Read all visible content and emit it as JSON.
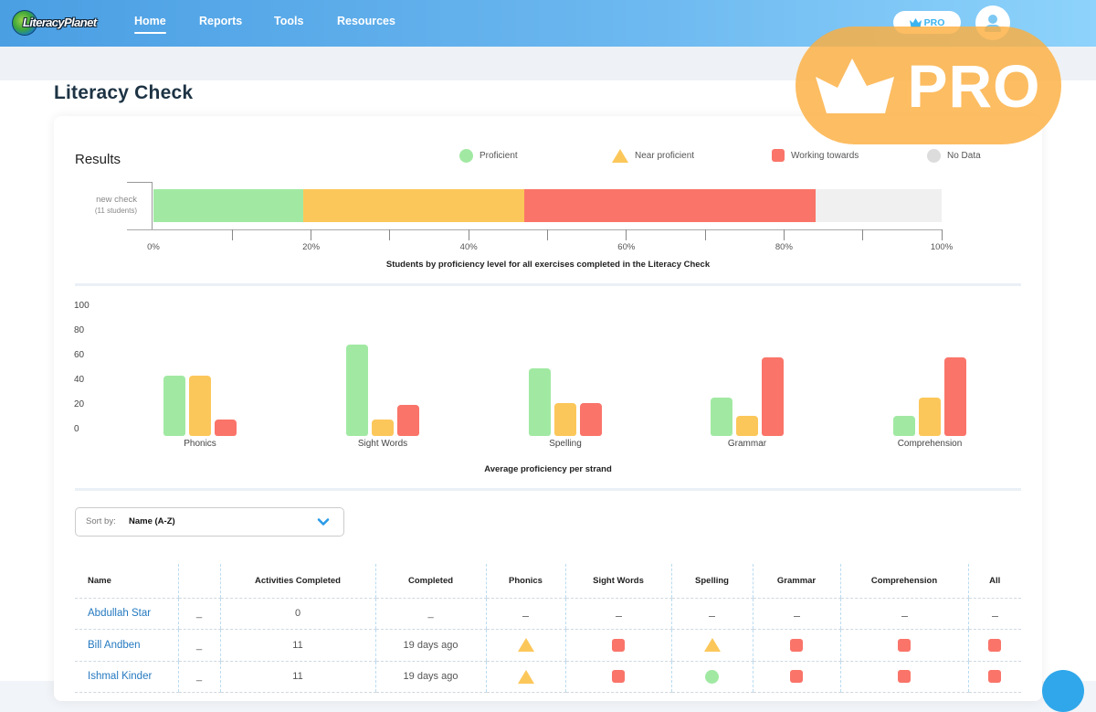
{
  "header": {
    "logo_text": "LiteracyPlanet",
    "nav": [
      {
        "label": "Home",
        "active": true
      },
      {
        "label": "Reports",
        "active": false
      },
      {
        "label": "Tools",
        "active": false
      },
      {
        "label": "Resources",
        "active": false
      }
    ],
    "pro_badge": "PRO"
  },
  "overlay": {
    "pro_text": "PRO"
  },
  "page": {
    "title": "Literacy Check"
  },
  "results": {
    "title": "Results",
    "legend": [
      {
        "label": "Proficient",
        "shape": "circle",
        "color": "#a1e9a3"
      },
      {
        "label": "Near proficient",
        "shape": "triangle",
        "color": "#fcc75a"
      },
      {
        "label": "Working towards",
        "shape": "square",
        "color": "#fa7469"
      },
      {
        "label": "No Data",
        "shape": "circle",
        "color": "#dcdcdc"
      }
    ]
  },
  "chart_data": [
    {
      "type": "bar",
      "orientation": "horizontal-stacked",
      "title": "",
      "xlabel": "Students by proficiency level for all exercises completed in the Literacy Check",
      "categories": [
        "new check"
      ],
      "category_sublabels": [
        "(11 students)"
      ],
      "series": [
        {
          "name": "Proficient",
          "color": "#a1e9a3",
          "values": [
            19
          ]
        },
        {
          "name": "Near proficient",
          "color": "#fcc75a",
          "values": [
            28
          ]
        },
        {
          "name": "Working towards",
          "color": "#fa7469",
          "values": [
            37
          ]
        },
        {
          "name": "No Data",
          "color": "#f0f0f0",
          "values": [
            16
          ]
        }
      ],
      "xlim": [
        0,
        100
      ],
      "x_ticks": [
        "0%",
        "20%",
        "40%",
        "60%",
        "80%",
        "100%"
      ],
      "unit": "%"
    },
    {
      "type": "bar",
      "orientation": "vertical-grouped",
      "title": "",
      "xlabel": "Average proficiency per strand",
      "ylabel": "",
      "categories": [
        "Phonics",
        "Sight Words",
        "Spelling",
        "Grammar",
        "Comprehension"
      ],
      "series": [
        {
          "name": "Proficient",
          "color": "#a1e9a3",
          "values": [
            49,
            74,
            55,
            31,
            16
          ]
        },
        {
          "name": "Near proficient",
          "color": "#fcc75a",
          "values": [
            49,
            13,
            27,
            16,
            31
          ]
        },
        {
          "name": "Working towards",
          "color": "#fa7469",
          "values": [
            13,
            25,
            27,
            64,
            64
          ]
        }
      ],
      "ylim": [
        0,
        100
      ],
      "y_ticks": [
        "100",
        "80",
        "60",
        "40",
        "20",
        "0"
      ],
      "grid": false
    }
  ],
  "sort": {
    "label": "Sort by:",
    "value": "Name (A-Z)"
  },
  "table": {
    "columns": [
      "Name",
      "",
      "Activities Completed",
      "Completed",
      "Phonics",
      "Sight Words",
      "Spelling",
      "Grammar",
      "Comprehension",
      "All"
    ],
    "rows": [
      {
        "name": "Abdullah Star",
        "col2": "_",
        "activities": "0",
        "completed": "_",
        "marks": [
          "dash",
          "dash",
          "dash",
          "dash",
          "dash",
          "dash"
        ]
      },
      {
        "name": "Bill Andben",
        "col2": "_",
        "activities": "11",
        "completed": "19 days ago",
        "marks": [
          "triangle",
          "square",
          "triangle",
          "square",
          "square",
          "square"
        ]
      },
      {
        "name": "Ishmal Kinder",
        "col2": "_",
        "activities": "11",
        "completed": "19 days ago",
        "marks": [
          "triangle",
          "square",
          "circle",
          "square",
          "square",
          "square"
        ]
      }
    ],
    "mark_legend": {
      "circle": "Proficient",
      "triangle": "Near proficient",
      "square": "Working towards",
      "dash": "No Data"
    }
  }
}
